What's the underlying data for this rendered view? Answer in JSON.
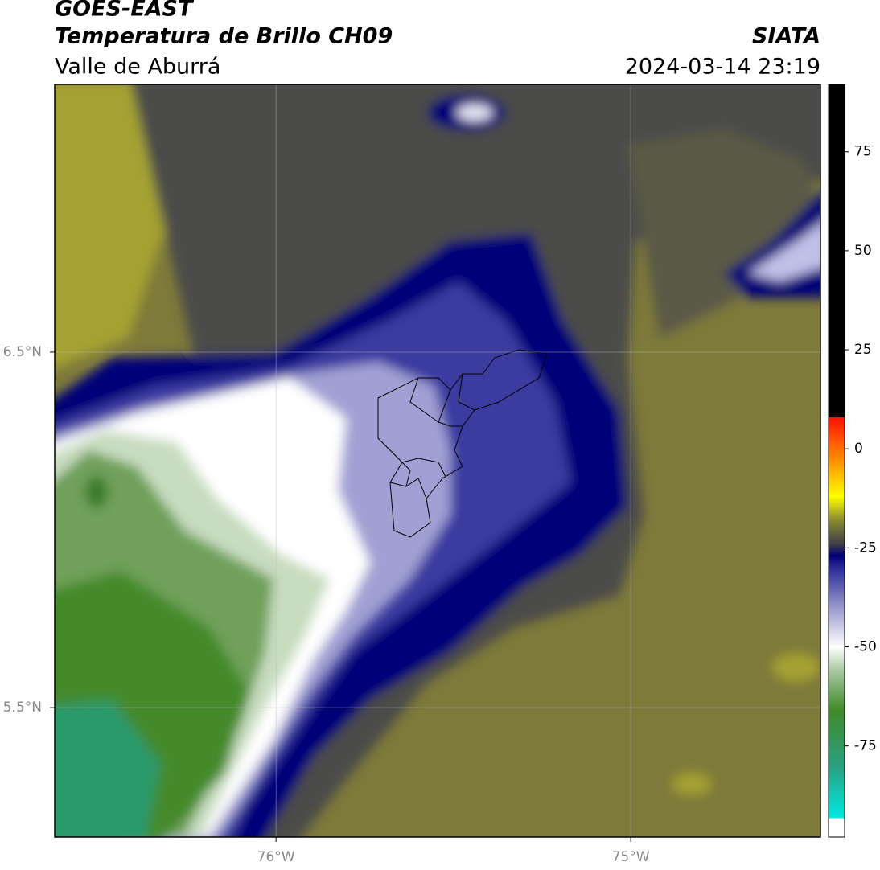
{
  "header": {
    "title": "GOES-EAST",
    "subtitle": "Temperatura de Brillo CH09",
    "region": "Valle de Aburrá",
    "source": "SIATA",
    "datetime": "2024-03-14 23:19"
  },
  "map": {
    "xlim": [
      -76.624,
      -74.465
    ],
    "ylim": [
      5.136,
      7.253
    ],
    "xticks": [
      {
        "value": -76,
        "label": "76°W"
      },
      {
        "value": -75,
        "label": "75°W"
      }
    ],
    "yticks": [
      {
        "value": 6.5,
        "label": "6.5°N"
      },
      {
        "value": 5.5,
        "label": "5.5°N"
      }
    ],
    "grid": true
  },
  "colorbar": {
    "lim": [
      -98,
      92
    ],
    "ticks": [
      75,
      50,
      25,
      0,
      -25,
      -50,
      -75
    ],
    "stops": [
      {
        "value": -98,
        "color": "#ffffff"
      },
      {
        "value": -93.5,
        "color": "#ffffff"
      },
      {
        "value": -93,
        "color": "#00e8e0"
      },
      {
        "value": -80,
        "color": "#2aa080"
      },
      {
        "value": -66,
        "color": "#408a28"
      },
      {
        "value": -56,
        "color": "#a8c8a0"
      },
      {
        "value": -50,
        "color": "#ffffff"
      },
      {
        "value": -40,
        "color": "#9898cc"
      },
      {
        "value": -30,
        "color": "#2a2a98"
      },
      {
        "value": -27,
        "color": "#000078"
      },
      {
        "value": -24,
        "color": "#404048"
      },
      {
        "value": -18,
        "color": "#8a8a30"
      },
      {
        "value": -12,
        "color": "#ffff00"
      },
      {
        "value": -3,
        "color": "#ff9000"
      },
      {
        "value": 8,
        "color": "#ff1000"
      },
      {
        "value": 8.01,
        "color": "#000000"
      },
      {
        "value": 92,
        "color": "#000000"
      }
    ]
  }
}
